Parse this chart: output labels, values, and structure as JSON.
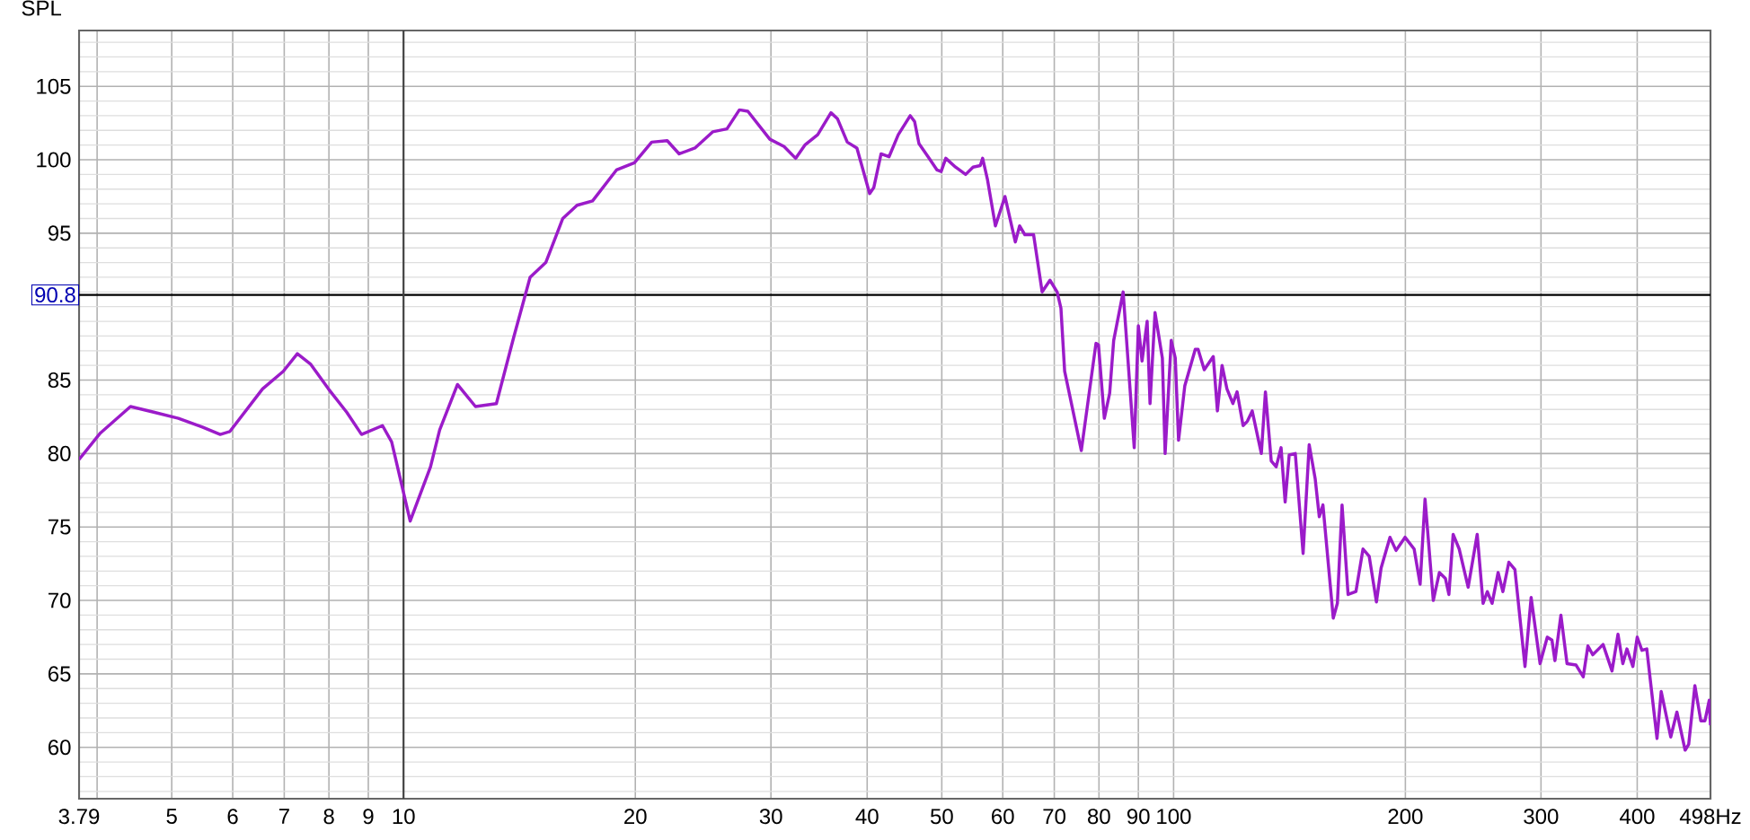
{
  "chart_data": {
    "type": "line",
    "ylabel": "SPL",
    "log": "x",
    "grid": true,
    "color": "#9b1bc9",
    "xlim": [
      3.79,
      498
    ],
    "ylim": [
      56.5,
      108.8
    ],
    "xticks": [
      3.79,
      {
        "value": 4,
        "label": null
      },
      5,
      6,
      7,
      8,
      9,
      10,
      20,
      30,
      40,
      50,
      60,
      70,
      80,
      90,
      100,
      200,
      300,
      400,
      {
        "value": 498,
        "label": "498Hz"
      }
    ],
    "yticks": [
      {
        "value": 57,
        "label": null
      },
      {
        "value": 58,
        "label": null
      },
      {
        "value": 59,
        "label": null
      },
      60,
      {
        "value": 61,
        "label": null
      },
      {
        "value": 62,
        "label": null
      },
      {
        "value": 63,
        "label": null
      },
      {
        "value": 64,
        "label": null
      },
      65,
      {
        "value": 66,
        "label": null
      },
      {
        "value": 67,
        "label": null
      },
      {
        "value": 68,
        "label": null
      },
      {
        "value": 69,
        "label": null
      },
      70,
      {
        "value": 71,
        "label": null
      },
      {
        "value": 72,
        "label": null
      },
      {
        "value": 73,
        "label": null
      },
      {
        "value": 74,
        "label": null
      },
      75,
      {
        "value": 76,
        "label": null
      },
      {
        "value": 77,
        "label": null
      },
      {
        "value": 78,
        "label": null
      },
      {
        "value": 79,
        "label": null
      },
      80,
      {
        "value": 81,
        "label": null
      },
      {
        "value": 82,
        "label": null
      },
      {
        "value": 83,
        "label": null
      },
      {
        "value": 84,
        "label": null
      },
      85,
      {
        "value": 86,
        "label": null
      },
      {
        "value": 87,
        "label": null
      },
      {
        "value": 88,
        "label": null
      },
      {
        "value": 89,
        "label": null
      },
      {
        "value": 90,
        "label": null
      },
      {
        "value": 91,
        "label": null
      },
      {
        "value": 92,
        "label": null
      },
      {
        "value": 93,
        "label": null
      },
      {
        "value": 94,
        "label": null
      },
      95,
      {
        "value": 96,
        "label": null
      },
      {
        "value": 97,
        "label": null
      },
      {
        "value": 98,
        "label": null
      },
      {
        "value": 99,
        "label": null
      },
      100,
      {
        "value": 101,
        "label": null
      },
      {
        "value": 102,
        "label": null
      },
      {
        "value": 103,
        "label": null
      },
      {
        "value": 104,
        "label": null
      },
      105,
      {
        "value": 106,
        "label": null
      },
      {
        "value": 107,
        "label": null
      },
      {
        "value": 108,
        "label": null
      }
    ],
    "ref_lines": [
      {
        "axis": "y",
        "value": 90.8,
        "label": "90.8",
        "color": "#000000"
      },
      {
        "axis": "x",
        "value": 10,
        "color": "#404040"
      }
    ],
    "x": [
      3.79,
      4.04,
      4.42,
      4.75,
      5.1,
      5.48,
      5.78,
      5.95,
      6.56,
      6.98,
      7.28,
      7.57,
      7.99,
      8.44,
      8.82,
      9.39,
      9.65,
      10.2,
      10.84,
      11.14,
      11.75,
      12.4,
      13.2,
      13.9,
      14.6,
      15.3,
      16.1,
      16.8,
      17.6,
      18.9,
      19.95,
      21.0,
      22.0,
      22.8,
      23.9,
      25.2,
      26.3,
      27.3,
      28.0,
      29.9,
      31.2,
      32.3,
      33.2,
      34.5,
      35.9,
      36.6,
      37.7,
      38.8,
      40.3,
      40.8,
      41.7,
      42.7,
      43.9,
      45.5,
      46.1,
      46.7,
      48.0,
      49.3,
      49.9,
      50.6,
      52.1,
      53.7,
      54.9,
      56.1,
      56.5,
      57.3,
      58.7,
      60.4,
      62.3,
      63.1,
      64.1,
      65.8,
      67.5,
      69.1,
      70.6,
      71.4,
      72.2,
      75.9,
      79.3,
      79.9,
      81.3,
      82.6,
      83.6,
      86.0,
      88.9,
      90.0,
      91.0,
      92.4,
      93.2,
      94.6,
      96.7,
      97.5,
      99.3,
      100.5,
      101.5,
      103.4,
      106.7,
      107.6,
      109.6,
      112.6,
      114.0,
      115.6,
      117.3,
      119.4,
      120.9,
      123.1,
      124.7,
      126.5,
      130.0,
      131.6,
      133.9,
      135.9,
      137.9,
      139.6,
      141.3,
      143.9,
      147.3,
      150.0,
      152.7,
      154.6,
      156.3,
      161.2,
      163.2,
      165.5,
      168.5,
      172.5,
      176.2,
      179.5,
      183.4,
      186.0,
      191.0,
      194.5,
      199.8,
      205.3,
      209.0,
      212.1,
      217.4,
      221.4,
      225.4,
      227.8,
      230.7,
      234.9,
      241.3,
      247.9,
      252.3,
      255.5,
      259.2,
      263.9,
      267.7,
      272.5,
      277.5,
      286.0,
      291.3,
      299.2,
      305.7,
      310.0,
      312.8,
      318.4,
      324.3,
      333.2,
      340.4,
      345.2,
      350.3,
      361.2,
      371.0,
      377.7,
      383.2,
      388.0,
      394.9,
      400.0,
      405.7,
      411.6,
      424.4,
      429.8,
      442.2,
      450.4,
      461.6,
      466.6,
      475.3,
      483.8,
      489.8,
      496.1,
      498
    ],
    "values": [
      79.6,
      81.4,
      83.2,
      82.8,
      82.4,
      81.8,
      81.3,
      81.5,
      84.4,
      85.6,
      86.8,
      86.1,
      84.4,
      82.8,
      81.3,
      81.9,
      80.8,
      75.4,
      79.1,
      81.6,
      84.7,
      83.2,
      83.4,
      87.9,
      92.0,
      93.0,
      96.0,
      96.9,
      97.2,
      99.3,
      99.8,
      101.2,
      101.3,
      100.4,
      100.8,
      101.9,
      102.1,
      103.4,
      103.3,
      101.4,
      100.9,
      100.1,
      101.0,
      101.7,
      103.2,
      102.8,
      101.2,
      100.8,
      97.7,
      98.1,
      100.4,
      100.2,
      101.7,
      103.0,
      102.6,
      101.1,
      100.2,
      99.3,
      99.2,
      100.1,
      99.5,
      99.0,
      99.5,
      99.6,
      100.1,
      98.7,
      95.5,
      97.5,
      94.4,
      95.5,
      94.9,
      94.9,
      91.0,
      91.8,
      91.0,
      89.9,
      85.6,
      80.2,
      87.5,
      87.4,
      82.4,
      84.1,
      87.7,
      91.0,
      80.4,
      88.7,
      86.3,
      89.0,
      83.4,
      89.6,
      86.5,
      80.0,
      87.7,
      86.5,
      80.9,
      84.6,
      87.1,
      87.1,
      85.7,
      86.6,
      82.9,
      86.0,
      84.4,
      83.4,
      84.2,
      81.9,
      82.2,
      82.9,
      80.0,
      84.2,
      79.5,
      79.1,
      80.4,
      76.7,
      79.9,
      80.0,
      73.2,
      80.6,
      78.3,
      75.7,
      76.5,
      68.8,
      69.8,
      76.5,
      70.4,
      70.6,
      73.5,
      73.0,
      69.9,
      72.2,
      74.3,
      73.4,
      74.3,
      73.5,
      71.1,
      76.9,
      70.0,
      71.9,
      71.5,
      70.4,
      74.5,
      73.5,
      70.9,
      74.5,
      69.8,
      70.6,
      69.8,
      71.9,
      70.6,
      72.6,
      72.1,
      65.5,
      70.2,
      65.7,
      67.5,
      67.3,
      65.9,
      69.0,
      65.7,
      65.6,
      64.8,
      66.9,
      66.3,
      67.0,
      65.2,
      67.7,
      65.7,
      66.7,
      65.5,
      67.5,
      66.6,
      66.7,
      60.6,
      63.8,
      60.7,
      62.4,
      59.8,
      60.2,
      64.2,
      61.8,
      61.8,
      63.2,
      61.5
    ]
  }
}
